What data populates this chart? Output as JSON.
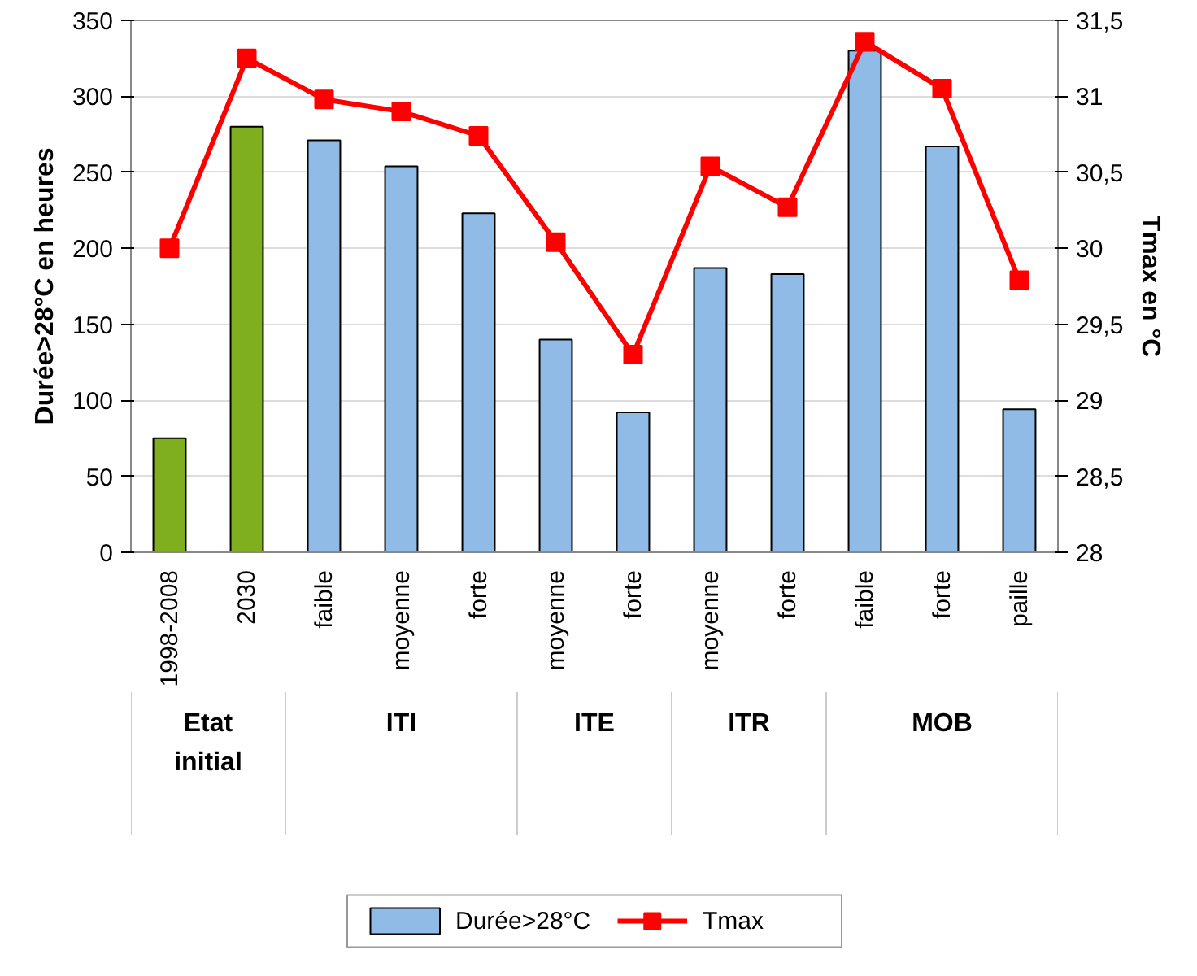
{
  "chart_data": {
    "type": "bar",
    "categories": [
      "1998-2008",
      "2030",
      "faible",
      "moyenne",
      "forte",
      "moyenne",
      "forte",
      "moyenne",
      "forte",
      "faible",
      "forte",
      "paille"
    ],
    "annotations": [
      "Etat initial",
      "ITI",
      "ITE",
      "ITR",
      "MOB"
    ],
    "ylabel": "Durée>28°C en heures",
    "y2label": "Tmax en °C",
    "series": [
      {
        "name": "Durée>28°C",
        "color": "#8fbbe6",
        "colors": [
          "#7fae1e",
          "#7fae1e",
          "#8fbbe6",
          "#8fbbe6",
          "#8fbbe6",
          "#8fbbe6",
          "#8fbbe6",
          "#8fbbe6",
          "#8fbbe6",
          "#8fbbe6",
          "#8fbbe6",
          "#8fbbe6"
        ],
        "values": [
          75,
          280,
          271,
          254,
          223,
          140,
          92,
          187,
          183,
          330,
          267,
          94
        ]
      },
      {
        "name": "Tmax",
        "type": "line",
        "axis": "y2",
        "color": "#ff0000",
        "marker": "square",
        "values": [
          30.0,
          31.25,
          30.98,
          30.9,
          30.74,
          30.04,
          29.3,
          30.54,
          30.27,
          31.36,
          31.05,
          29.79
        ]
      }
    ],
    "ylim": [
      0,
      350
    ],
    "yticks": [
      0,
      50,
      100,
      150,
      200,
      250,
      300,
      350
    ],
    "y2lim": [
      28,
      31.5
    ],
    "y2ticks": [
      28,
      {
        "value": 28.5,
        "label": "28,5"
      },
      29,
      {
        "value": 29.5,
        "label": "29,5"
      },
      30,
      {
        "value": 30.5,
        "label": "30,5"
      },
      31,
      {
        "value": 31.5,
        "label": "31,5"
      }
    ],
    "grid": "y",
    "legend": "bottom"
  }
}
